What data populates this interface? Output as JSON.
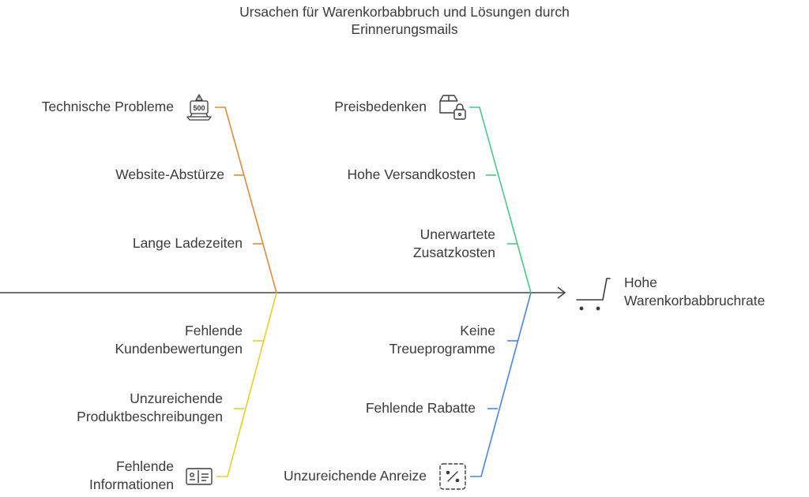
{
  "title": {
    "line1": "Ursachen für Warenkorbabbruch und Lösungen durch",
    "line2": "Erinnerungsmails"
  },
  "effect": {
    "line1": "Hohe",
    "line2": "Warenkorbabbruchrate",
    "icon": "shopping-cart-icon"
  },
  "branches": {
    "technical": {
      "color": "#e08a3c",
      "head": "Technische Probleme",
      "head_icon": "server-error-500-icon",
      "causes": [
        "Website-Abstürze",
        "Lange Ladezeiten"
      ]
    },
    "price": {
      "color": "#4cc68a",
      "head": "Preisbedenken",
      "head_icon": "locked-package-icon",
      "causes": [
        "Hohe Versandkosten",
        "Unerwartete",
        "Zusatzkosten"
      ]
    },
    "information": {
      "color": "#e6cf2a",
      "causes": [
        "Fehlende",
        "Kundenbewertungen",
        "Unzureichende",
        "Produktbeschreibungen"
      ],
      "head_line1": "Fehlende",
      "head_line2": "Informationen",
      "head_icon": "product-info-card-icon"
    },
    "incentives": {
      "color": "#4a86dc",
      "causes": [
        "Keine",
        "Treueprogramme",
        "Fehlende Rabatte"
      ],
      "head": "Unzureichende Anreize",
      "head_icon": "discount-percent-icon"
    }
  },
  "spine_color": "#444444"
}
